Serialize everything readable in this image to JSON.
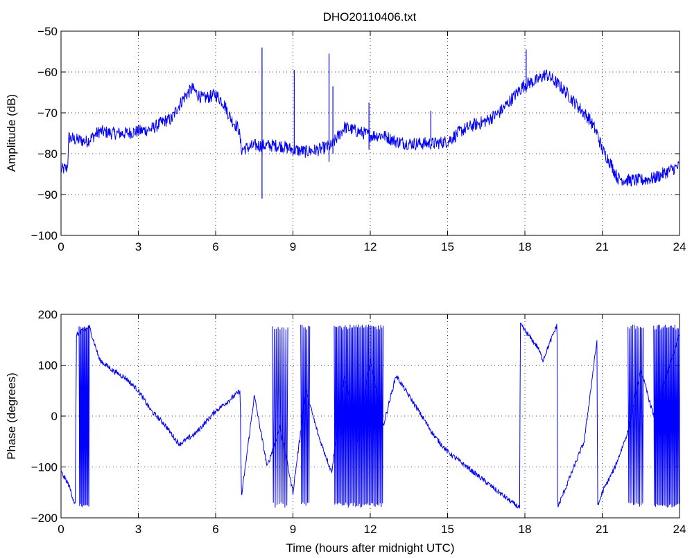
{
  "figure": {
    "title": "DHO20110406.txt",
    "line_color": "#0000ff"
  },
  "chart_data": [
    {
      "type": "line",
      "title": "DHO20110406.txt",
      "xlabel": "",
      "ylabel": "Amplitude (dB)",
      "xlim": [
        0,
        24
      ],
      "ylim": [
        -100,
        -50
      ],
      "xticks": [
        "0",
        "3",
        "6",
        "9",
        "12",
        "15",
        "18",
        "21",
        "24"
      ],
      "yticks": [
        "−100",
        "−90",
        "−80",
        "−70",
        "−60",
        "−50"
      ],
      "grid": true,
      "series": [
        {
          "color": "#0000ff",
          "noise": 1.6,
          "x": [
            0,
            0.25,
            0.3,
            0.5,
            1,
            1.5,
            2,
            2.5,
            3,
            3.5,
            4,
            4.3,
            4.5,
            4.8,
            5.1,
            5.3,
            5.5,
            5.8,
            6,
            6.3,
            6.6,
            6.9,
            7,
            7.5,
            8,
            8.5,
            9,
            9.5,
            10,
            10.5,
            11,
            11.5,
            12,
            12.5,
            13,
            13.5,
            14,
            14.5,
            15,
            15.5,
            16,
            16.5,
            17,
            17.5,
            18,
            18.5,
            18.8,
            19.2,
            19.6,
            20,
            20.5,
            20.8,
            21,
            21.3,
            21.6,
            22,
            22.5,
            23,
            23.5,
            24
          ],
          "y": [
            -84,
            -83.5,
            -76,
            -76.5,
            -77,
            -74.5,
            -75,
            -75,
            -74.5,
            -74,
            -72,
            -71.5,
            -69,
            -66,
            -64,
            -65.5,
            -66.5,
            -66,
            -65.5,
            -67.5,
            -71.5,
            -74,
            -79,
            -78,
            -78,
            -78,
            -79,
            -79.5,
            -79,
            -78,
            -73.5,
            -74.5,
            -75.5,
            -75.5,
            -77,
            -77.5,
            -77.5,
            -77.5,
            -77,
            -74.5,
            -73,
            -72,
            -70,
            -66.5,
            -63,
            -62,
            -60.5,
            -62.5,
            -65,
            -68,
            -71.5,
            -75,
            -79,
            -82,
            -86,
            -86.5,
            -86.5,
            -86,
            -84.5,
            -83
          ],
          "spikes": [
            {
              "x": 7.8,
              "y_max": -54,
              "y_min": -91
            },
            {
              "x": 9.05,
              "y_max": -59.5,
              "y_min": -80
            },
            {
              "x": 10.4,
              "y_max": -55.5,
              "y_min": -82
            },
            {
              "x": 10.55,
              "y_max": -63.5,
              "y_min": -80
            },
            {
              "x": 11.95,
              "y_max": -67.5,
              "y_min": -79
            },
            {
              "x": 14.35,
              "y_max": -69.5,
              "y_min": -77
            },
            {
              "x": 18.05,
              "y_max": -54.5,
              "y_min": -65
            }
          ]
        }
      ]
    },
    {
      "type": "line",
      "title": "",
      "xlabel": "Time (hours after midnight UTC)",
      "ylabel": "Phase (degrees)",
      "xlim": [
        0,
        24
      ],
      "ylim": [
        -200,
        200
      ],
      "xticks": [
        "0",
        "3",
        "6",
        "9",
        "12",
        "15",
        "18",
        "21",
        "24"
      ],
      "yticks": [
        "−200",
        "−100",
        "0",
        "100",
        "200"
      ],
      "grid": true,
      "series": [
        {
          "color": "#0000ff",
          "noise": 5,
          "x": [
            0,
            0.3,
            0.55,
            0.6,
            1.1,
            1.5,
            2,
            2.5,
            3,
            3.5,
            4,
            4.5,
            4.6,
            5.2,
            6,
            6.5,
            6.95,
            7,
            7.5,
            8,
            8.5,
            9,
            9.5,
            10,
            10.5,
            11,
            11.5,
            12,
            12.5,
            13,
            13.5,
            14,
            14.5,
            15,
            15.5,
            16,
            16.5,
            17,
            17.5,
            17.8,
            17.82,
            18.5,
            18.7,
            19.25,
            19.27,
            20.3,
            20.8,
            20.82,
            21,
            21.5,
            22,
            22.5,
            23,
            24
          ],
          "y": [
            -110,
            -135,
            -175,
            160,
            175,
            110,
            90,
            75,
            50,
            10,
            -15,
            -50,
            -55,
            -35,
            10,
            30,
            50,
            -160,
            40,
            -100,
            -20,
            -150,
            50,
            -40,
            -110,
            80,
            -50,
            110,
            -20,
            80,
            40,
            0,
            -40,
            -70,
            -90,
            -110,
            -130,
            -150,
            -170,
            -180,
            180,
            135,
            110,
            180,
            -180,
            -50,
            150,
            -180,
            -150,
            -100,
            -30,
            90,
            0,
            160
          ],
          "oscillations": [
            {
              "x_start": 0.7,
              "x_end": 1.1,
              "count": 10
            },
            {
              "x_start": 8.2,
              "x_end": 8.8,
              "count": 8
            },
            {
              "x_start": 9.3,
              "x_end": 9.65,
              "count": 6
            },
            {
              "x_start": 10.6,
              "x_end": 12.5,
              "count": 40
            },
            {
              "x_start": 22.0,
              "x_end": 22.6,
              "count": 10
            },
            {
              "x_start": 23.0,
              "x_end": 24.0,
              "count": 22
            }
          ]
        }
      ]
    }
  ]
}
